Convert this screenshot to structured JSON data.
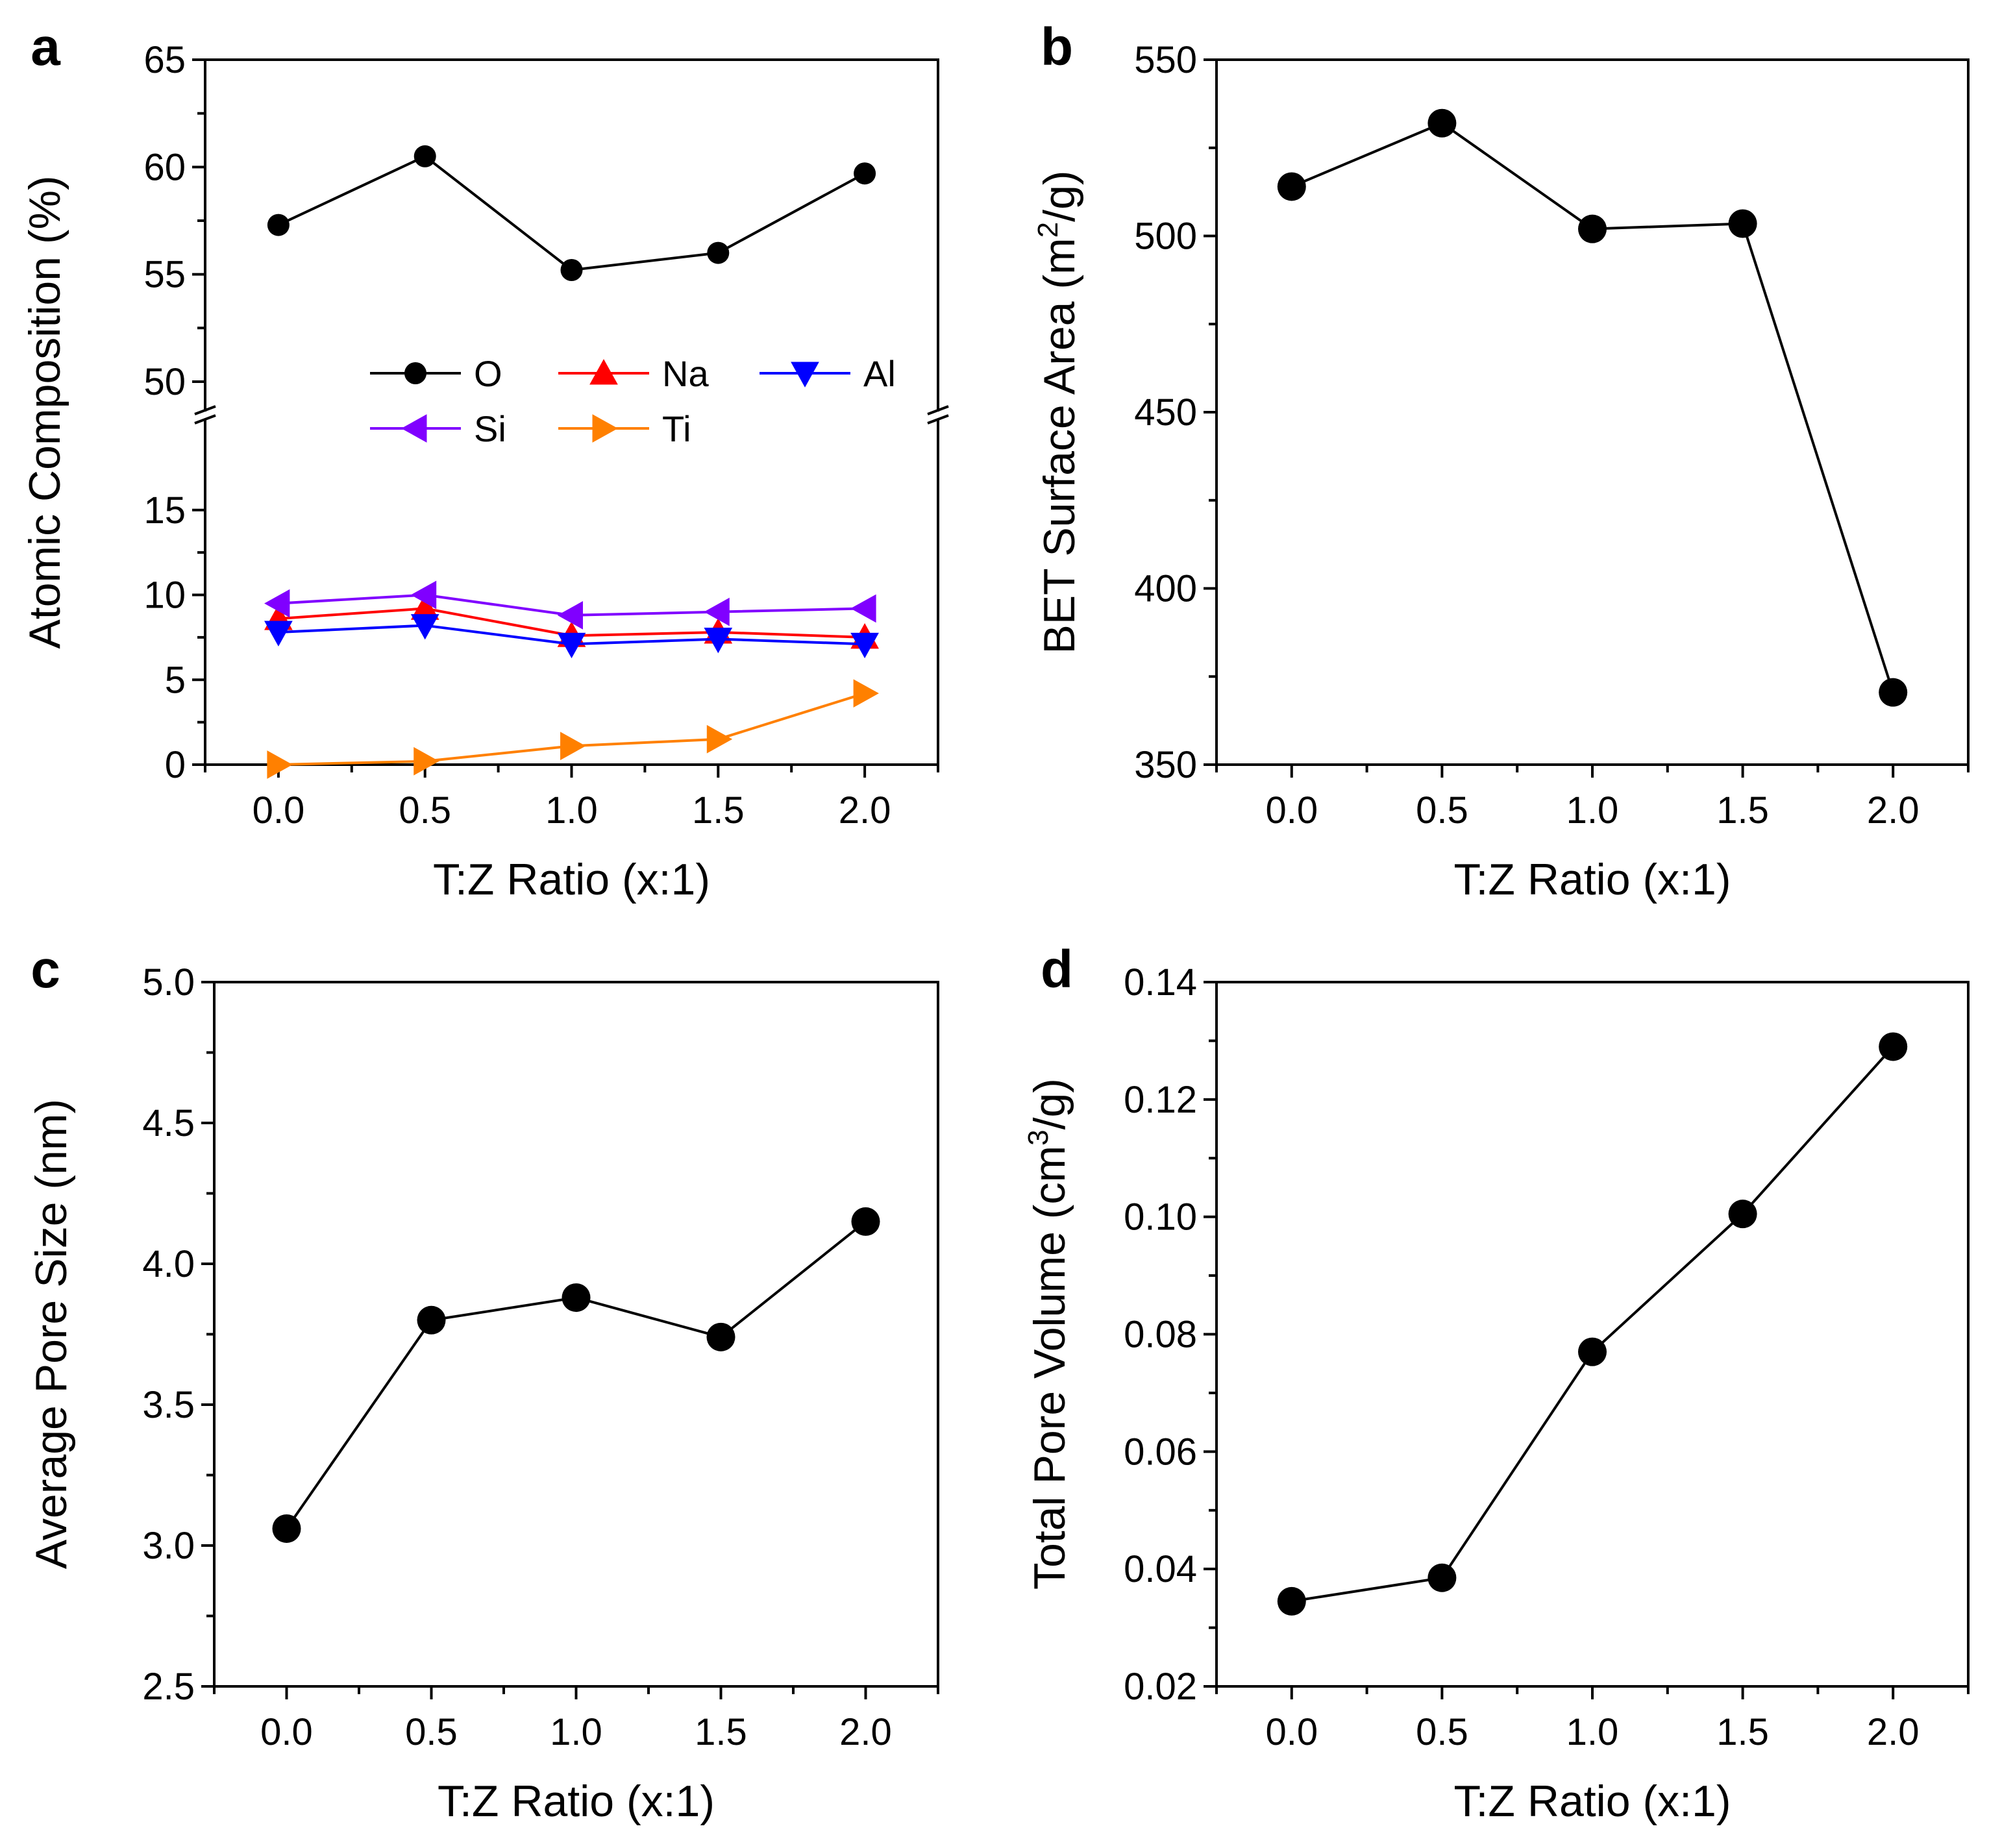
{
  "chart_data": [
    {
      "panel": "a",
      "type": "line",
      "xlabel": "T:Z Ratio (x:1)",
      "ylabel": "Atomic Composition (%)",
      "x": [
        0.0,
        0.5,
        1.0,
        1.5,
        2.0
      ],
      "xlim": [
        -0.25,
        2.25
      ],
      "xticks": [
        "0.0",
        "0.5",
        "1.0",
        "1.5",
        "2.0"
      ],
      "y_axis_break": true,
      "ylim_lower": [
        0,
        20
      ],
      "ylim_upper": [
        49,
        65
      ],
      "yticks_lower": [
        "0",
        "5",
        "10",
        "15"
      ],
      "yticks_upper": [
        "50",
        "55",
        "60",
        "65"
      ],
      "series": [
        {
          "name": "O",
          "marker": "circle",
          "color": "#000000",
          "values": [
            57.3,
            60.5,
            55.2,
            56.0,
            59.7
          ]
        },
        {
          "name": "Na",
          "marker": "triangle-up",
          "color": "#ff0000",
          "values": [
            8.6,
            9.2,
            7.6,
            7.8,
            7.5
          ]
        },
        {
          "name": "Al",
          "marker": "triangle-down",
          "color": "#0000ff",
          "values": [
            7.8,
            8.2,
            7.1,
            7.4,
            7.1
          ]
        },
        {
          "name": "Si",
          "marker": "triangle-left",
          "color": "#8000ff",
          "values": [
            9.5,
            10.0,
            8.8,
            9.0,
            9.2
          ]
        },
        {
          "name": "Ti",
          "marker": "triangle-right",
          "color": "#ff8000",
          "values": [
            0.0,
            0.2,
            1.1,
            1.5,
            4.2
          ]
        }
      ],
      "legend_position": "top-center, below O series"
    },
    {
      "panel": "b",
      "type": "line",
      "xlabel": "T:Z Ratio (x:1)",
      "ylabel": "BET Surface Area (m",
      "ylabel_sup": "2",
      "ylabel_tail": "/g)",
      "x": [
        0.0,
        0.5,
        1.0,
        1.5,
        2.0
      ],
      "xlim": [
        -0.25,
        2.25
      ],
      "xticks": [
        "0.0",
        "0.5",
        "1.0",
        "1.5",
        "2.0"
      ],
      "ylim": [
        350,
        550
      ],
      "yticks": [
        "350",
        "400",
        "450",
        "500",
        "550"
      ],
      "series": [
        {
          "name": "BET Surface Area",
          "marker": "circle",
          "color": "#000000",
          "values": [
            514,
            532,
            502,
            503.5,
            370.5
          ]
        }
      ]
    },
    {
      "panel": "c",
      "type": "line",
      "xlabel": "T:Z Ratio (x:1)",
      "ylabel": "Average Pore Size (nm)",
      "x": [
        0.0,
        0.5,
        1.0,
        1.5,
        2.0
      ],
      "xlim": [
        -0.25,
        2.25
      ],
      "xticks": [
        "0.0",
        "0.5",
        "1.0",
        "1.5",
        "2.0"
      ],
      "ylim": [
        2.5,
        5.0
      ],
      "yticks": [
        "2.5",
        "3.0",
        "3.5",
        "4.0",
        "4.5",
        "5.0"
      ],
      "series": [
        {
          "name": "Average Pore Size",
          "marker": "circle",
          "color": "#000000",
          "values": [
            3.06,
            3.8,
            3.88,
            3.74,
            4.15
          ]
        }
      ]
    },
    {
      "panel": "d",
      "type": "line",
      "xlabel": "T:Z Ratio (x:1)",
      "ylabel": "Total Pore Volume (cm",
      "ylabel_sup": "3",
      "ylabel_tail": "/g)",
      "x": [
        0.0,
        0.5,
        1.0,
        1.5,
        2.0
      ],
      "xlim": [
        -0.25,
        2.25
      ],
      "xticks": [
        "0.0",
        "0.5",
        "1.0",
        "1.5",
        "2.0"
      ],
      "ylim": [
        0.02,
        0.14
      ],
      "yticks": [
        "0.02",
        "0.04",
        "0.06",
        "0.08",
        "0.10",
        "0.12",
        "0.14"
      ],
      "series": [
        {
          "name": "Total Pore Volume",
          "marker": "circle",
          "color": "#000000",
          "values": [
            0.0345,
            0.0385,
            0.077,
            0.1005,
            0.129
          ]
        }
      ]
    }
  ]
}
